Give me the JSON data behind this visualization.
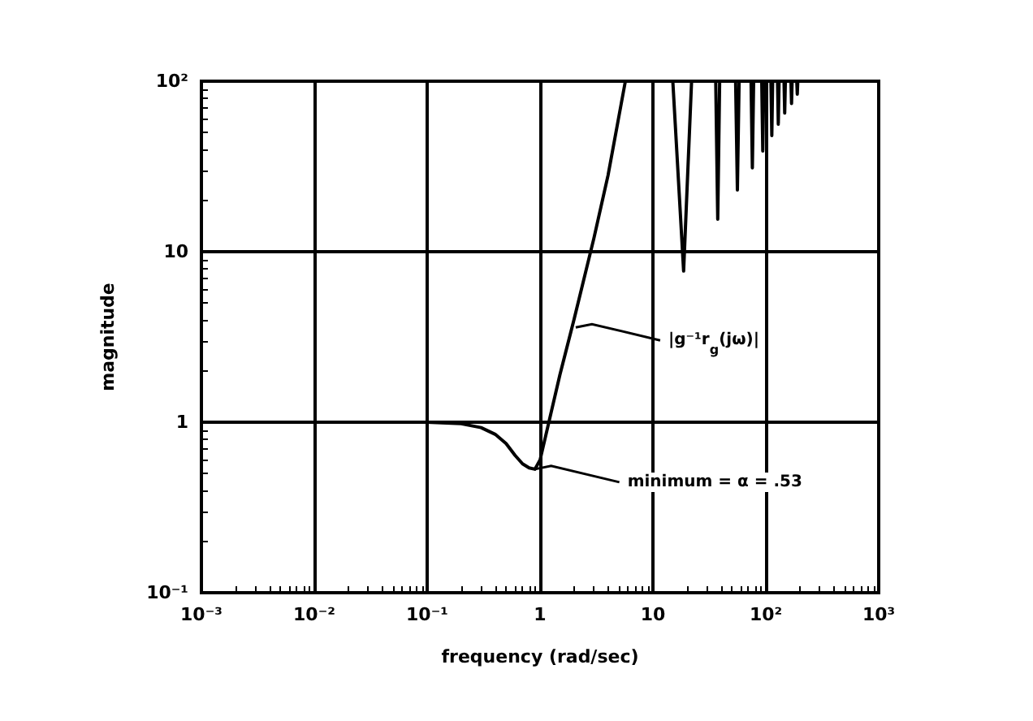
{
  "chart_data": {
    "type": "line",
    "xlabel": "frequency (rad/sec)",
    "ylabel": "magnitude",
    "log": "xy",
    "grid": true,
    "marker": "none",
    "line_style": "solid",
    "xlim": [
      0.001,
      1000
    ],
    "ylim": [
      0.1,
      100
    ],
    "xticks": [
      {
        "value": 0.001,
        "label": "10⁻³"
      },
      {
        "value": 0.01,
        "label": "10⁻²"
      },
      {
        "value": 0.1,
        "label": "10⁻¹"
      },
      1,
      10,
      {
        "value": 100,
        "label": "10²"
      },
      {
        "value": 1000,
        "label": "10³"
      }
    ],
    "yticks": [
      {
        "value": 0.1,
        "label": "10⁻¹"
      },
      1,
      10,
      {
        "value": 100,
        "label": "10²"
      }
    ],
    "series": [
      {
        "color": "#000000",
        "x": [
          0.1,
          0.2,
          0.3,
          0.4,
          0.5,
          0.6,
          0.7,
          0.8,
          0.9,
          1.0,
          1.5,
          2,
          3,
          4,
          5.7,
          15,
          18.7,
          22,
          36,
          37.5,
          39,
          54,
          56,
          58,
          74,
          76,
          78,
          92,
          94,
          96,
          111,
          113,
          115,
          127,
          129,
          131,
          145,
          147,
          149,
          167,
          169,
          171,
          188,
          190,
          192
        ],
        "values": [
          1,
          0.98,
          0.93,
          0.85,
          0.75,
          0.64,
          0.57,
          0.54,
          0.53,
          0.6,
          1.9,
          4,
          12,
          28,
          100,
          100,
          7.7,
          100,
          100,
          15.5,
          100,
          100,
          23,
          100,
          100,
          31,
          100,
          100,
          39,
          100,
          100,
          48,
          100,
          100,
          56,
          100,
          100,
          65,
          100,
          100,
          74,
          100,
          100,
          84,
          100
        ]
      }
    ],
    "annotations": [
      {
        "text": "|g⁻¹r$_{g}$(jω)|",
        "x": 2.07,
        "y": 3.6
      },
      {
        "text": "minimum = α = .53",
        "x": 0.9,
        "y": 0.53
      }
    ]
  }
}
